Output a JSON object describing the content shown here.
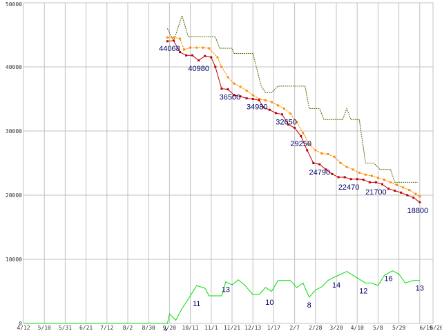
{
  "chart_data": {
    "type": "line",
    "title": "",
    "xlabel": "",
    "ylabel": "",
    "ylim": [
      0,
      50000
    ],
    "grid": true,
    "y_ticks": [
      0,
      10000,
      20000,
      30000,
      40000,
      50000
    ],
    "x_tick_labels": [
      "4/12",
      "5/10",
      "5/31",
      "6/21",
      "7/12",
      "8/2",
      "8/30",
      "9/20",
      "10/11",
      "11/1",
      "11/21",
      "12/13",
      "1/17",
      "2/7",
      "2/28",
      "3/20",
      "4/10",
      "5/8",
      "5/29",
      "6/19",
      "6/26"
    ],
    "x_range": [
      0,
      20
    ],
    "colors": {
      "price": "#c00000",
      "average": "#ff8c00",
      "high": "#556b00",
      "count": "#00dd00",
      "grid": "#c0c0c0",
      "labels": "#00006a"
    },
    "series": [
      {
        "key": "high",
        "dashed": true,
        "points": [
          [
            6.9,
            46000
          ],
          [
            7.2,
            44000
          ],
          [
            7.6,
            48000
          ],
          [
            7.9,
            44700
          ],
          [
            9.2,
            44700
          ],
          [
            9.4,
            42900
          ],
          [
            10.0,
            42900
          ],
          [
            10.1,
            42100
          ],
          [
            11.0,
            42100
          ],
          [
            11.4,
            37000
          ],
          [
            11.6,
            36000
          ],
          [
            11.9,
            36000
          ],
          [
            12.2,
            37000
          ],
          [
            13.5,
            37000
          ],
          [
            13.7,
            33500
          ],
          [
            14.2,
            33500
          ],
          [
            14.4,
            31800
          ],
          [
            15.3,
            31800
          ],
          [
            15.5,
            33500
          ],
          [
            15.7,
            31800
          ],
          [
            16.1,
            31800
          ],
          [
            16.4,
            25000
          ],
          [
            16.8,
            25000
          ],
          [
            17.1,
            24000
          ],
          [
            17.6,
            24000
          ],
          [
            17.8,
            22000
          ],
          [
            18.9,
            22000
          ]
        ]
      },
      {
        "key": "average",
        "dashed": true,
        "markers": true,
        "points": [
          [
            6.9,
            44600
          ],
          [
            7.2,
            44600
          ],
          [
            7.5,
            44400
          ],
          [
            7.7,
            42700
          ],
          [
            8.0,
            43000
          ],
          [
            8.3,
            43000
          ],
          [
            8.6,
            43000
          ],
          [
            8.9,
            42900
          ],
          [
            9.3,
            41500
          ],
          [
            9.5,
            40000
          ],
          [
            9.8,
            38400
          ],
          [
            10.1,
            37400
          ],
          [
            10.4,
            36900
          ],
          [
            10.7,
            36300
          ],
          [
            11.0,
            35600
          ],
          [
            11.3,
            35000
          ],
          [
            11.6,
            34800
          ],
          [
            11.9,
            34500
          ],
          [
            12.2,
            34000
          ],
          [
            12.5,
            33500
          ],
          [
            12.8,
            32700
          ],
          [
            13.1,
            31400
          ],
          [
            13.4,
            29700
          ],
          [
            13.7,
            28000
          ],
          [
            14.0,
            27000
          ],
          [
            14.3,
            26500
          ],
          [
            14.6,
            26400
          ],
          [
            14.9,
            26000
          ],
          [
            15.2,
            25000
          ],
          [
            15.5,
            24400
          ],
          [
            15.8,
            24000
          ],
          [
            16.1,
            23500
          ],
          [
            16.4,
            23200
          ],
          [
            16.7,
            23000
          ],
          [
            17.0,
            22700
          ],
          [
            17.3,
            22400
          ],
          [
            17.6,
            22000
          ],
          [
            17.9,
            21600
          ],
          [
            18.2,
            21200
          ],
          [
            18.5,
            20800
          ],
          [
            18.8,
            20200
          ],
          [
            19.0,
            19800
          ]
        ]
      },
      {
        "key": "price",
        "dashed": false,
        "markers": true,
        "points": [
          [
            6.9,
            44000
          ],
          [
            7.2,
            44100
          ],
          [
            7.5,
            42300
          ],
          [
            7.8,
            41800
          ],
          [
            8.1,
            41800
          ],
          [
            8.4,
            41000
          ],
          [
            8.7,
            41700
          ],
          [
            9.0,
            41500
          ],
          [
            9.2,
            40000
          ],
          [
            9.5,
            36600
          ],
          [
            9.8,
            36500
          ],
          [
            10.1,
            35600
          ],
          [
            10.4,
            35400
          ],
          [
            10.7,
            35100
          ],
          [
            11.0,
            35000
          ],
          [
            11.3,
            34800
          ],
          [
            11.5,
            33700
          ],
          [
            11.8,
            33300
          ],
          [
            12.1,
            32800
          ],
          [
            12.4,
            32600
          ],
          [
            12.7,
            31000
          ],
          [
            13.0,
            30500
          ],
          [
            13.3,
            29200
          ],
          [
            13.6,
            27000
          ],
          [
            13.9,
            25000
          ],
          [
            14.2,
            24800
          ],
          [
            14.5,
            24000
          ],
          [
            14.8,
            23300
          ],
          [
            15.1,
            22800
          ],
          [
            15.4,
            22800
          ],
          [
            15.7,
            22500
          ],
          [
            16.0,
            22500
          ],
          [
            16.3,
            22400
          ],
          [
            16.6,
            22000
          ],
          [
            16.9,
            22000
          ],
          [
            17.2,
            21700
          ],
          [
            17.5,
            21000
          ],
          [
            17.8,
            20700
          ],
          [
            18.1,
            20400
          ],
          [
            18.4,
            20000
          ],
          [
            18.7,
            19600
          ],
          [
            19.0,
            18900
          ]
        ]
      },
      {
        "key": "count",
        "dashed": false,
        "markers": false,
        "points": [
          [
            0,
            0
          ],
          [
            6.9,
            0
          ],
          [
            7.0,
            1500
          ],
          [
            7.3,
            500
          ],
          [
            7.6,
            2300
          ],
          [
            8.0,
            4300
          ],
          [
            8.3,
            5900
          ],
          [
            8.7,
            5500
          ],
          [
            8.9,
            4300
          ],
          [
            9.5,
            4300
          ],
          [
            9.7,
            6500
          ],
          [
            10.0,
            6000
          ],
          [
            10.3,
            6800
          ],
          [
            10.6,
            6000
          ],
          [
            11.0,
            4500
          ],
          [
            11.3,
            4500
          ],
          [
            11.6,
            5600
          ],
          [
            11.9,
            5000
          ],
          [
            12.2,
            6700
          ],
          [
            12.8,
            6700
          ],
          [
            13.1,
            5600
          ],
          [
            13.4,
            6300
          ],
          [
            13.7,
            4100
          ],
          [
            14.0,
            5200
          ],
          [
            14.3,
            5700
          ],
          [
            14.6,
            6700
          ],
          [
            14.9,
            7200
          ],
          [
            15.5,
            8100
          ],
          [
            15.8,
            7500
          ],
          [
            16.1,
            6900
          ],
          [
            16.4,
            6300
          ],
          [
            16.7,
            6300
          ],
          [
            17.0,
            5900
          ],
          [
            17.3,
            7500
          ],
          [
            17.7,
            8200
          ],
          [
            18.0,
            7700
          ],
          [
            18.3,
            6300
          ],
          [
            18.7,
            6700
          ],
          [
            19.0,
            6700
          ]
        ]
      }
    ],
    "price_labels": [
      {
        "x": 7.0,
        "y": 44068,
        "text": "44068"
      },
      {
        "x": 8.4,
        "y": 40980,
        "text": "40980"
      },
      {
        "x": 9.9,
        "y": 36500,
        "text": "36500"
      },
      {
        "x": 11.2,
        "y": 34980,
        "text": "34980"
      },
      {
        "x": 12.6,
        "y": 32650,
        "text": "32650"
      },
      {
        "x": 13.3,
        "y": 29250,
        "text": "29250"
      },
      {
        "x": 14.2,
        "y": 24790,
        "text": "24790"
      },
      {
        "x": 15.6,
        "y": 22470,
        "text": "22470"
      },
      {
        "x": 16.9,
        "y": 21700,
        "text": "21700"
      },
      {
        "x": 18.9,
        "y": 18800,
        "text": "18800"
      }
    ],
    "count_labels": [
      {
        "x": 6.8,
        "y": 0,
        "text": "3"
      },
      {
        "x": 8.3,
        "y": 4300,
        "text": "11"
      },
      {
        "x": 9.7,
        "y": 6500,
        "text": "13"
      },
      {
        "x": 11.8,
        "y": 4500,
        "text": "10"
      },
      {
        "x": 13.7,
        "y": 4100,
        "text": "8"
      },
      {
        "x": 15.0,
        "y": 7200,
        "text": "14"
      },
      {
        "x": 16.3,
        "y": 6300,
        "text": "12"
      },
      {
        "x": 17.5,
        "y": 8200,
        "text": "16"
      },
      {
        "x": 19.0,
        "y": 6700,
        "text": "13"
      }
    ]
  }
}
